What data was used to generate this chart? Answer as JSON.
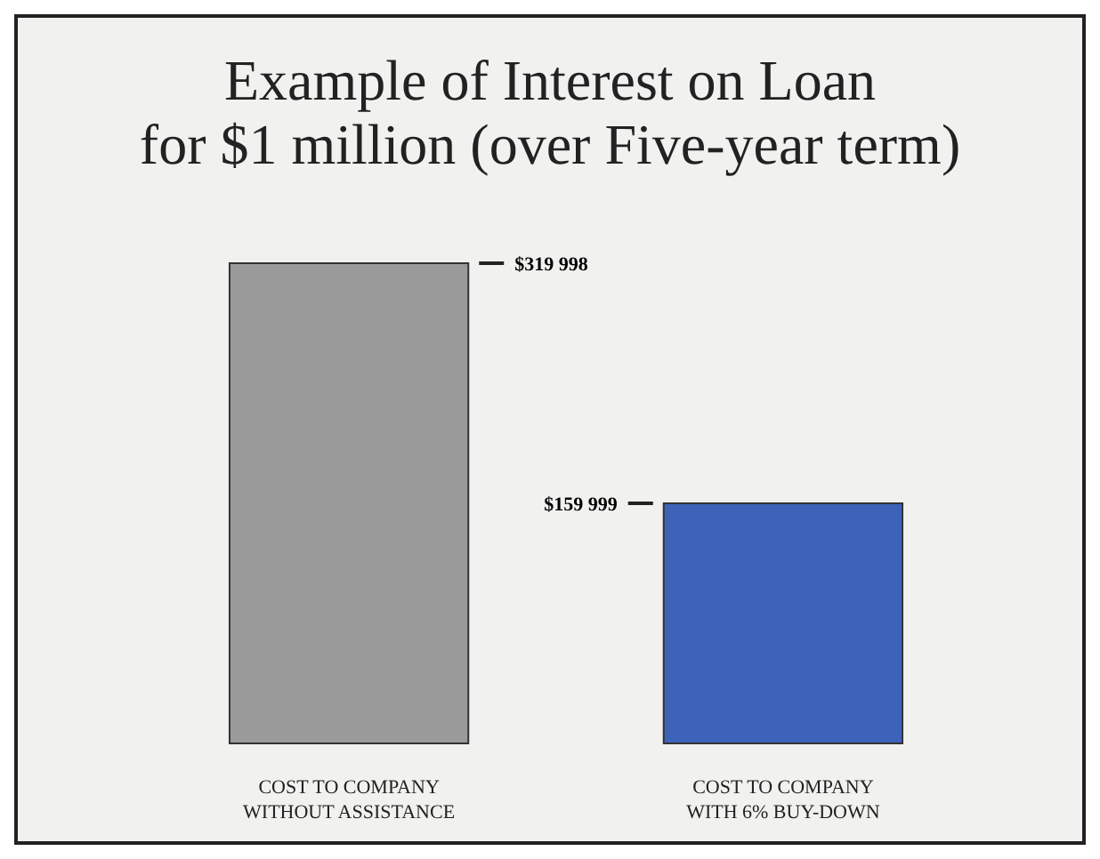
{
  "chart_data": {
    "type": "bar",
    "title": "Example of Interest on Loan\nfor $1 million (over Five-year term)",
    "categories": [
      "COST TO COMPANY WITHOUT ASSISTANCE",
      "COST TO COMPANY WITH 6% BUY-DOWN"
    ],
    "values": [
      319998,
      159999
    ],
    "colors": [
      "#9a9a9a",
      "#3d63b8"
    ],
    "value_labels": [
      "$319 998",
      "$159 999"
    ]
  }
}
